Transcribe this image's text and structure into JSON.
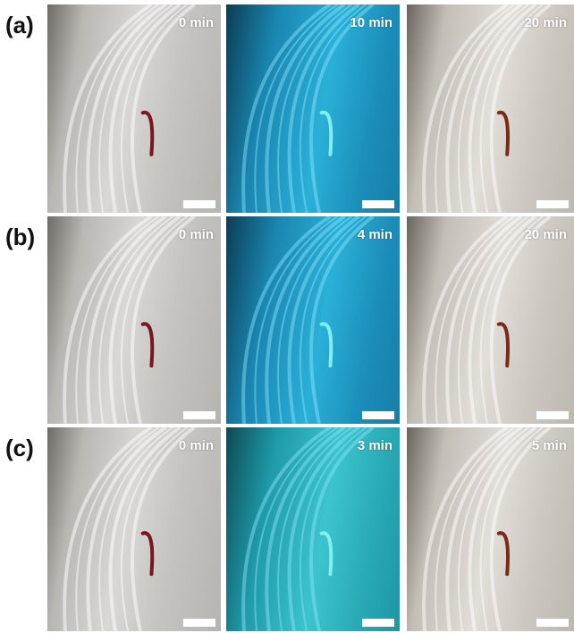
{
  "rows": [
    {
      "label": "(a)",
      "panels": [
        {
          "time": "0 min"
        },
        {
          "time": "10 min"
        },
        {
          "time": "20 min"
        }
      ]
    },
    {
      "label": "(b)",
      "panels": [
        {
          "time": "0 min"
        },
        {
          "time": "4 min"
        },
        {
          "time": "20 min"
        }
      ]
    },
    {
      "label": "(c)",
      "panels": [
        {
          "time": "0 min"
        },
        {
          "time": "3 min"
        },
        {
          "time": "5 min"
        }
      ]
    }
  ]
}
